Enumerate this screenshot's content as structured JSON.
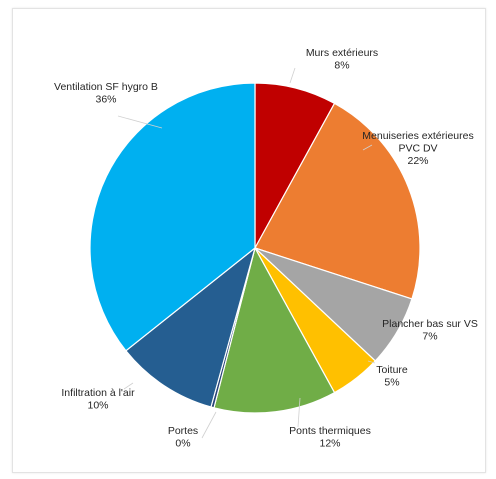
{
  "chart_data": {
    "type": "pie",
    "legend": "none",
    "slices": [
      {
        "label_lines": [
          "Murs extérieurs"
        ],
        "percent_label": "8%",
        "value": 8,
        "color": "#c00000"
      },
      {
        "label_lines": [
          "Menuiseries extérieures",
          "PVC DV"
        ],
        "percent_label": "22%",
        "value": 22,
        "color": "#ed7d31"
      },
      {
        "label_lines": [
          "Plancher bas sur VS"
        ],
        "percent_label": "7%",
        "value": 7,
        "color": "#a5a5a5"
      },
      {
        "label_lines": [
          "Toiture"
        ],
        "percent_label": "5%",
        "value": 5,
        "color": "#ffc000"
      },
      {
        "label_lines": [
          "Ponts thermiques"
        ],
        "percent_label": "12%",
        "value": 12,
        "color": "#70ad47"
      },
      {
        "label_lines": [
          "Portes"
        ],
        "percent_label": "0%",
        "value": 0.3,
        "color": "#264478"
      },
      {
        "label_lines": [
          "Infiltration à l'air"
        ],
        "percent_label": "10%",
        "value": 10,
        "color": "#255e91"
      },
      {
        "label_lines": [
          "Ventilation SF hygro B"
        ],
        "percent_label": "36%",
        "value": 35.7,
        "color": "#00b0f0"
      }
    ]
  }
}
